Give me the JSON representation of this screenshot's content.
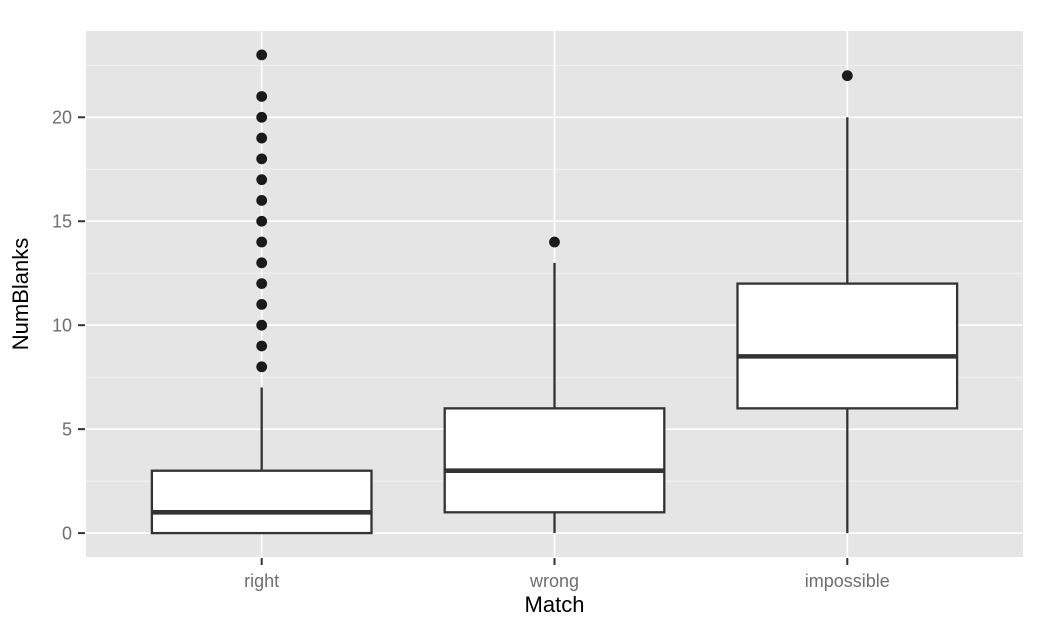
{
  "chart_data": {
    "type": "boxplot",
    "title": "",
    "xlabel": "Match",
    "ylabel": "NumBlanks",
    "categories": [
      "right",
      "wrong",
      "impossible"
    ],
    "series": [
      {
        "name": "right",
        "whisker_low": 0,
        "q1": 0,
        "median": 1,
        "q3": 3,
        "whisker_high": 7,
        "outliers": [
          8,
          9,
          10,
          11,
          12,
          13,
          14,
          15,
          16,
          17,
          18,
          19,
          20,
          21,
          23
        ]
      },
      {
        "name": "wrong",
        "whisker_low": 0,
        "q1": 1,
        "median": 3,
        "q3": 6,
        "whisker_high": 13,
        "outliers": [
          14
        ]
      },
      {
        "name": "impossible",
        "whisker_low": 0,
        "q1": 6,
        "median": 8.5,
        "q3": 12,
        "whisker_high": 20,
        "outliers": [
          22
        ]
      }
    ],
    "y_ticks": [
      0,
      5,
      10,
      15,
      20
    ],
    "y_minor_gridlines": [
      2.5,
      7.5,
      12.5,
      17.5,
      22.5
    ],
    "ylim": [
      -1.15,
      24.15
    ],
    "grid": "major+minor",
    "legend": "none",
    "colors": {
      "panel_background": "#E5E5E5",
      "grid_major": "#FFFFFF",
      "grid_minor": "#FFFFFF",
      "box_fill": "#FFFFFF",
      "box_border": "#333333",
      "median": "#333333",
      "outlier": "#1A1A1A",
      "axis_text": "#6E6E6E",
      "axis_title": "#000000",
      "tick_mark": "#333333"
    }
  }
}
